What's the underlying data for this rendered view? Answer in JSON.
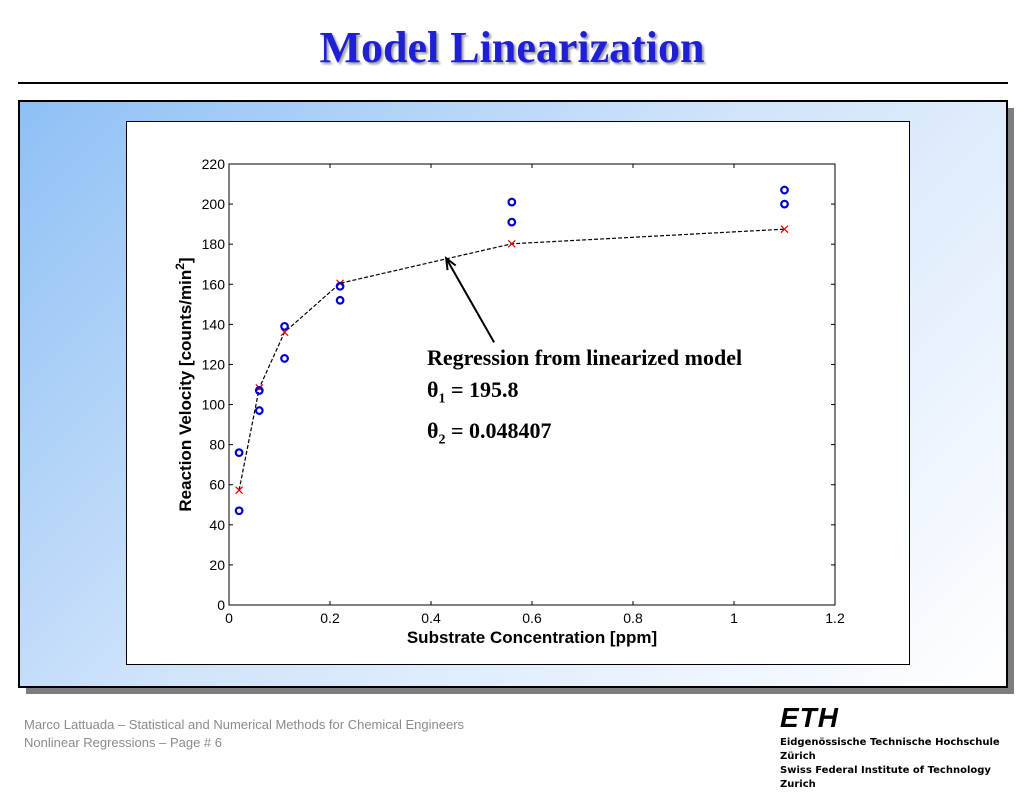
{
  "slide": {
    "title": "Model Linearization"
  },
  "annotation": {
    "line1": "Regression from linearized model",
    "theta1_symbol": "θ",
    "theta1_sub": "1",
    "theta1_value": " = 195.8",
    "theta2_symbol": "θ",
    "theta2_sub": "2",
    "theta2_value": " = 0.048407"
  },
  "footer": {
    "line1": "Marco Lattuada – Statistical and Numerical Methods for Chemical Engineers",
    "line2": "Nonlinear Regressions – Page #  6"
  },
  "logo": {
    "mark": "ETH",
    "line1": "Eidgenössische Technische Hochschule Zürich",
    "line2": "Swiss Federal Institute of Technology Zurich"
  },
  "chart_data": {
    "type": "scatter",
    "title": "",
    "xlabel": "Substrate Concentration [ppm]",
    "ylabel": "Reaction Velocity [counts/min",
    "ylabel_sup": "2",
    "ylabel_end": "]",
    "xlim": [
      0,
      1.2
    ],
    "ylim": [
      0,
      220
    ],
    "xticks": [
      0,
      0.2,
      0.4,
      0.6,
      0.8,
      1,
      1.2
    ],
    "xtick_labels": [
      "0",
      "0.2",
      "0.4",
      "0.6",
      "0.8",
      "1",
      "1.2"
    ],
    "yticks": [
      0,
      20,
      40,
      60,
      80,
      100,
      120,
      140,
      160,
      180,
      200,
      220
    ],
    "ytick_labels": [
      "0",
      "20",
      "40",
      "60",
      "80",
      "100",
      "120",
      "140",
      "160",
      "180",
      "200",
      "220"
    ],
    "grid": false,
    "series": [
      {
        "marker": "circle",
        "color": "#0000cc",
        "points": [
          [
            0.02,
            76
          ],
          [
            0.02,
            47
          ],
          [
            0.06,
            97
          ],
          [
            0.06,
            107
          ],
          [
            0.11,
            123
          ],
          [
            0.11,
            139
          ],
          [
            0.22,
            159
          ],
          [
            0.22,
            152
          ],
          [
            0.56,
            191
          ],
          [
            0.56,
            201
          ],
          [
            1.1,
            207
          ],
          [
            1.1,
            200
          ]
        ]
      },
      {
        "marker": "x",
        "color": "#dd0000",
        "line": "dashed",
        "line_color": "#000000",
        "points": [
          [
            0.02,
            57.3
          ],
          [
            0.06,
            108.3
          ],
          [
            0.11,
            136.1
          ],
          [
            0.22,
            160.5
          ],
          [
            0.56,
            180.2
          ],
          [
            1.1,
            187.5
          ]
        ]
      }
    ],
    "arrow": {
      "from": [
        0.525,
        131
      ],
      "to": [
        0.43,
        173
      ]
    }
  }
}
